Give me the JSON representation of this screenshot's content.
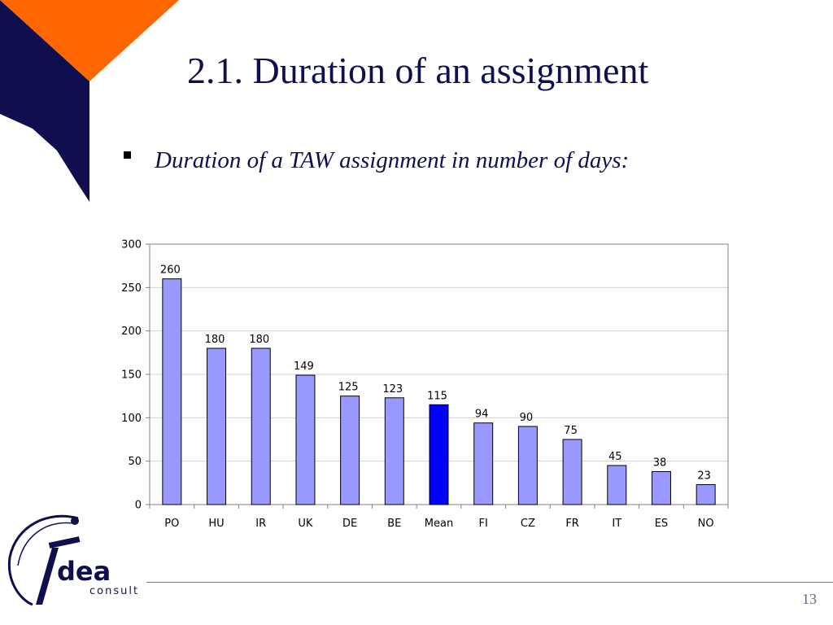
{
  "slide": {
    "title": "2.1. Duration of an assignment",
    "bullet": "Duration of a TAW assignment in number of days:",
    "page_number": "13"
  },
  "logo": {
    "brand": "dea",
    "sub": "consult"
  },
  "colors": {
    "bar": "#9999ff",
    "highlight_bar": "#0000ff",
    "corner_orange": "#ff6600",
    "corner_navy": "#0f0f50"
  },
  "chart_data": {
    "type": "bar",
    "categories": [
      "PO",
      "HU",
      "IR",
      "UK",
      "DE",
      "BE",
      "Mean",
      "FI",
      "CZ",
      "FR",
      "IT",
      "ES",
      "NO"
    ],
    "values": [
      260,
      180,
      180,
      149,
      125,
      123,
      115,
      94,
      90,
      75,
      45,
      38,
      23
    ],
    "highlight_category": "Mean",
    "ylim": [
      0,
      300
    ],
    "yticks": [
      0,
      50,
      100,
      150,
      200,
      250,
      300
    ],
    "grid": true,
    "legend": "none"
  }
}
